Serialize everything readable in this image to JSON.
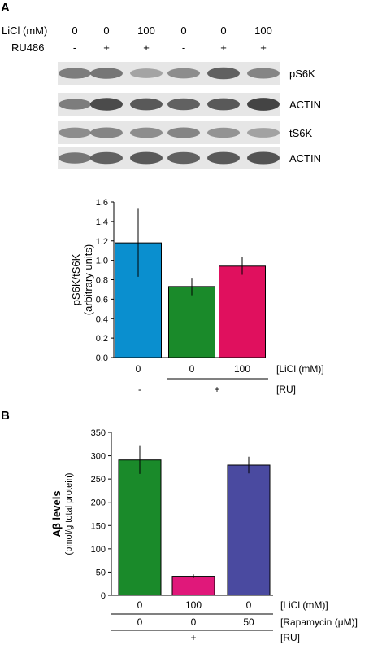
{
  "panel_a": {
    "label": "A",
    "header": {
      "licl_label": "LiCl (mM)",
      "ru_label": "RU486",
      "licl_values": [
        "0",
        "0",
        "100",
        "0",
        "0",
        "100"
      ],
      "ru_values": [
        "-",
        "+",
        "+",
        "-",
        "+",
        "+"
      ]
    },
    "blots": [
      {
        "label": "pS6K",
        "bands": [
          0.55,
          0.6,
          0.28,
          0.45,
          0.75,
          0.5
        ]
      },
      {
        "label": "ACTIN",
        "bands": [
          0.55,
          0.9,
          0.8,
          0.75,
          0.8,
          0.95
        ]
      },
      {
        "label": "tS6K",
        "bands": [
          0.45,
          0.5,
          0.45,
          0.5,
          0.4,
          0.3
        ]
      },
      {
        "label": "ACTIN",
        "bands": [
          0.6,
          0.75,
          0.8,
          0.75,
          0.8,
          0.85
        ]
      }
    ],
    "row_labels": {
      "licl": "[LiCl (mM)]",
      "ru": "[RU]",
      "ru_values": [
        "-",
        "+"
      ]
    }
  },
  "panel_b": {
    "label": "B",
    "row_labels": {
      "licl": "[LiCl (mM)]",
      "rapa": "[Rapamycin (μM)]",
      "ru": "[RU]",
      "licl_values": [
        "0",
        "100",
        "0"
      ],
      "rapa_values": [
        "0",
        "0",
        "50"
      ],
      "ru_value": "+"
    }
  },
  "chart_data": [
    {
      "type": "bar",
      "categories": [
        "0",
        "0",
        "100"
      ],
      "values": [
        1.18,
        0.73,
        0.94
      ],
      "errors": [
        0.35,
        0.09,
        0.09
      ],
      "colors": [
        "#0a8fcf",
        "#1a8a2a",
        "#e0105e"
      ],
      "ylabel": "pS6K/tS6K",
      "ylabel2": "(arbitrary units)",
      "ylim": [
        0,
        1.6
      ],
      "yticks": [
        "0.0",
        "0.2",
        "0.4",
        "0.6",
        "0.8",
        "1.0",
        "1.2",
        "1.4",
        "1.6"
      ]
    },
    {
      "type": "bar",
      "categories": [
        "0",
        "100",
        "0"
      ],
      "values": [
        291,
        41,
        280
      ],
      "errors": [
        30,
        4,
        18
      ],
      "colors": [
        "#1a8a2a",
        "#e0187a",
        "#4a4aa0"
      ],
      "ylabel": "Aβ levels",
      "ylabel2": "(pmol/g total protein)",
      "ylim": [
        0,
        350
      ],
      "yticks": [
        "0",
        "50",
        "100",
        "150",
        "200",
        "250",
        "300",
        "350"
      ]
    }
  ]
}
